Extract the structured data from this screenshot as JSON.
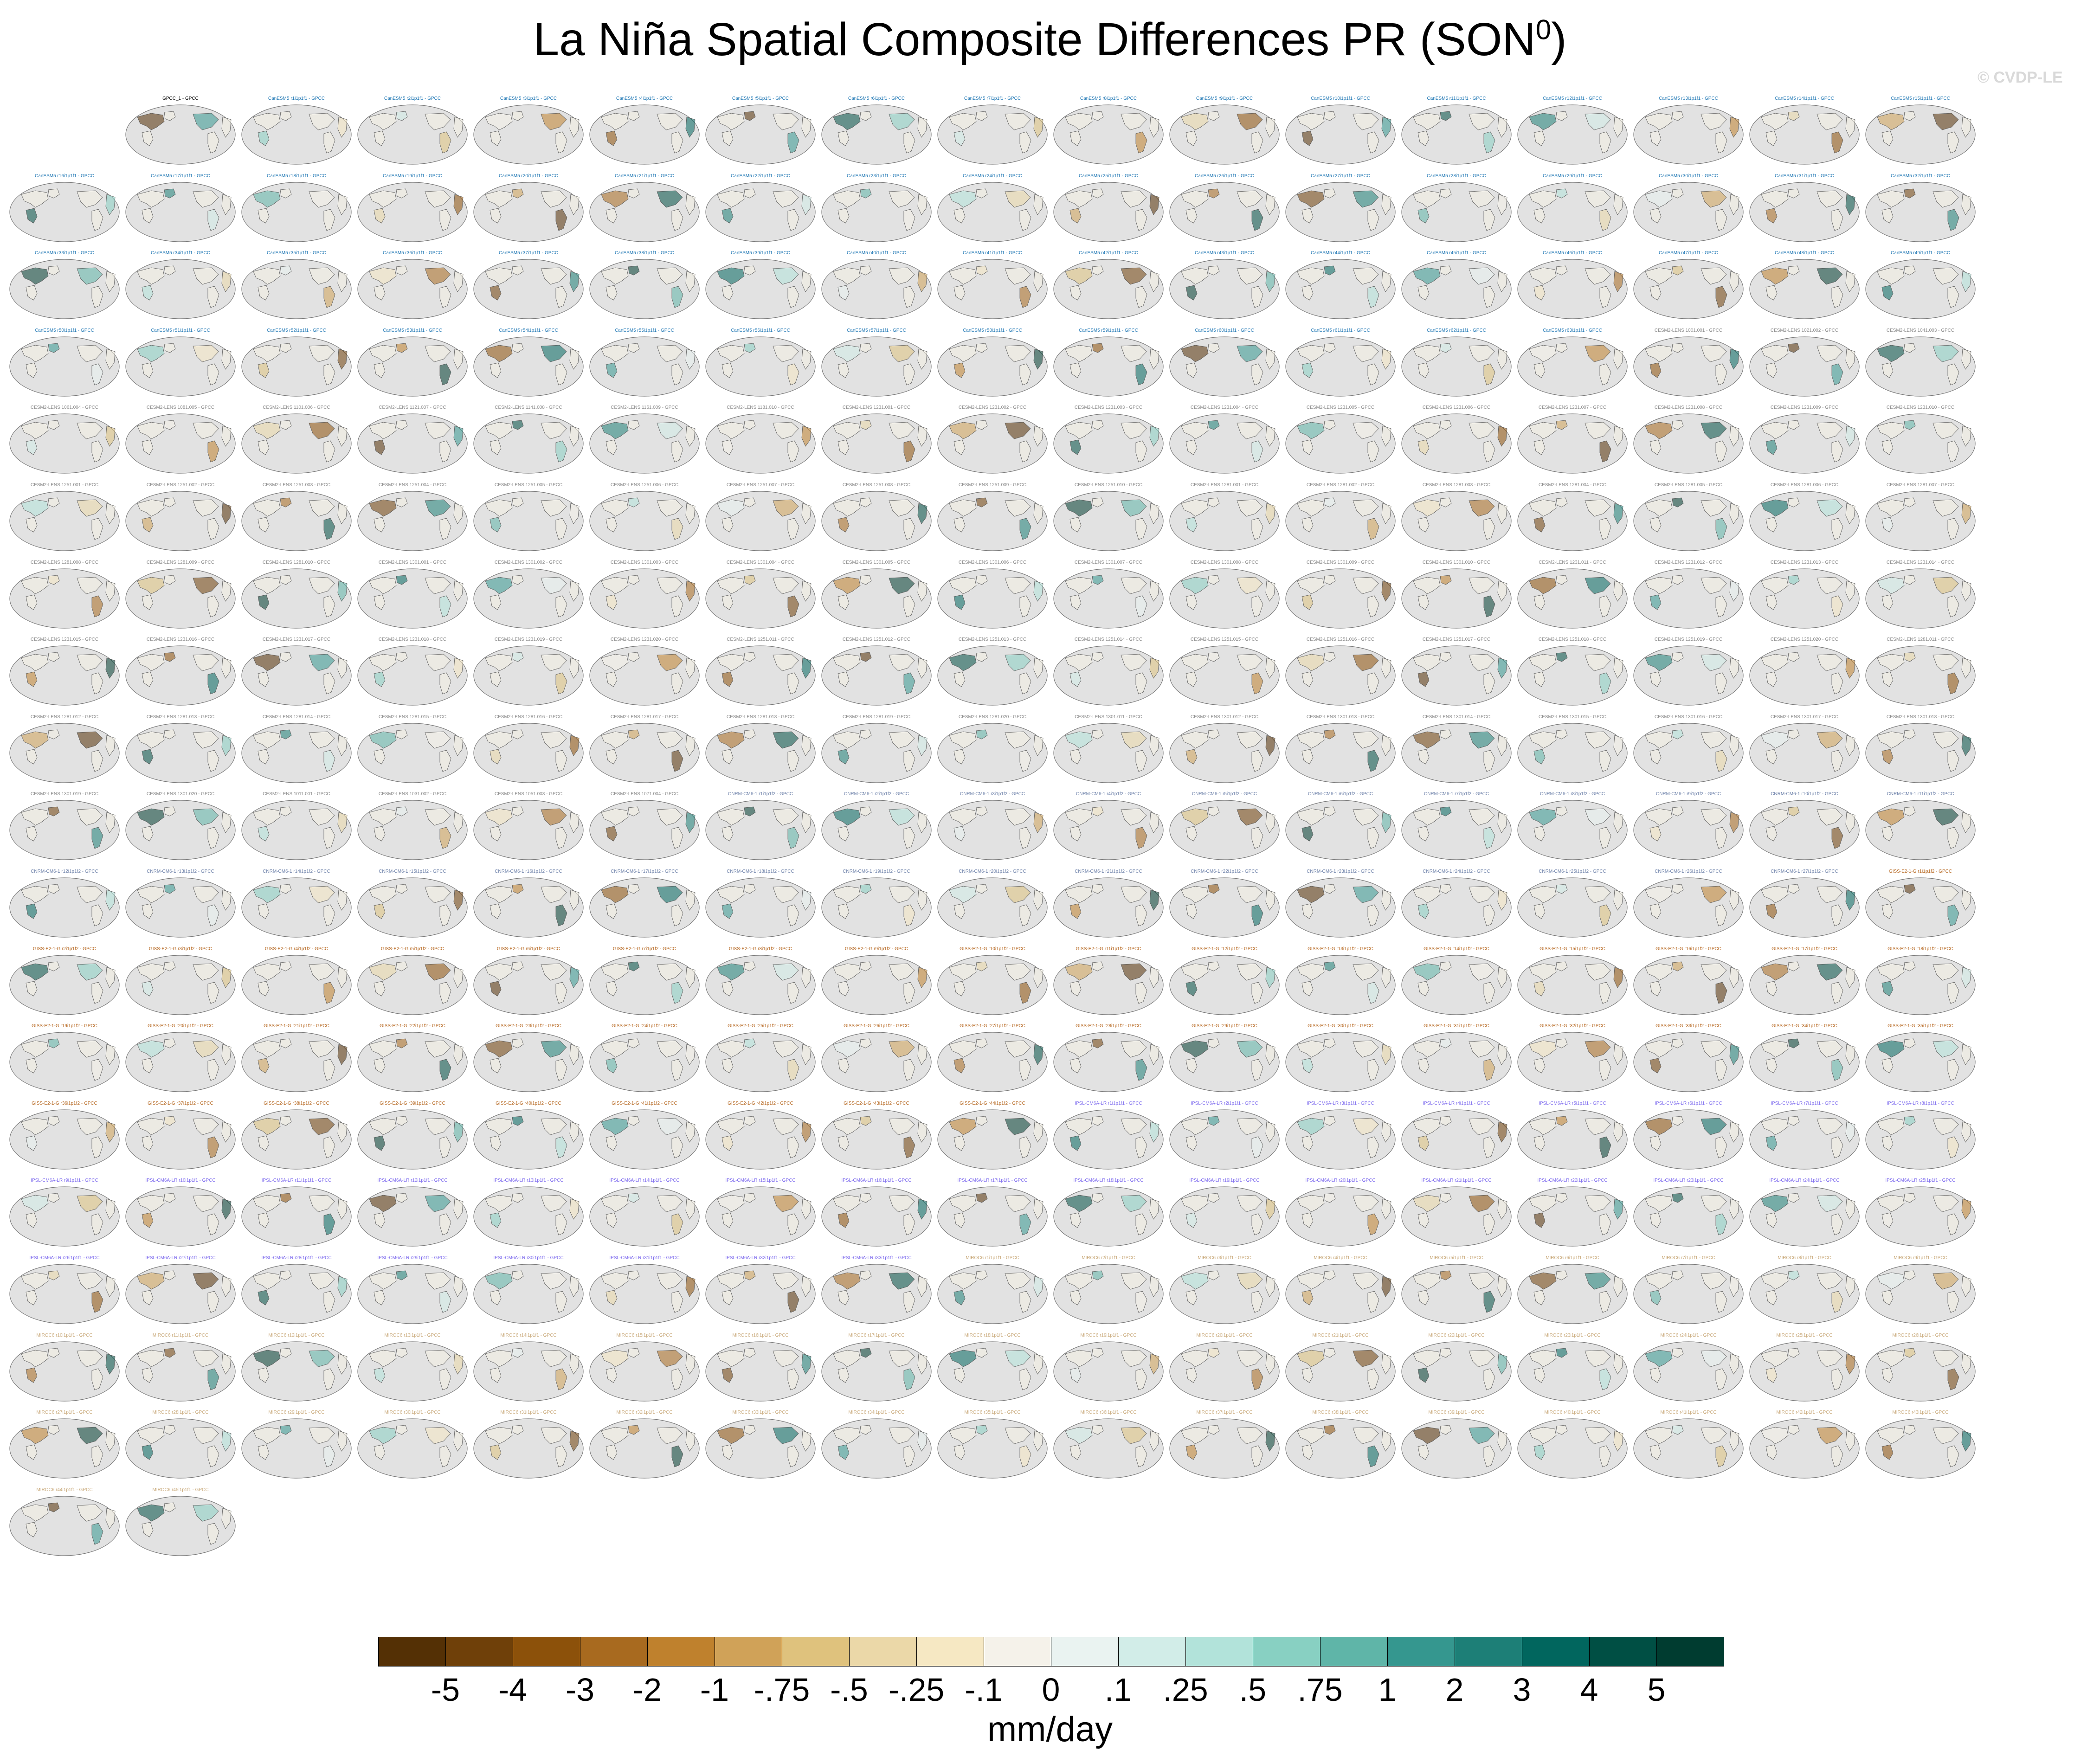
{
  "figure": {
    "title": "La Niña Spatial Composite Differences PR (SON",
    "title_superscript": "0",
    "title_close": ")",
    "watermark": "© CVDP-LE"
  },
  "panels": {
    "first_row_start_column": 1,
    "columns": 17,
    "titles": [
      "GPCC_1 - GPCC",
      "CanESM5 r1i1p1f1 - GPCC",
      "CanESM5 r2i1p1f1 - GPCC",
      "CanESM5 r3i1p1f1 - GPCC",
      "CanESM5 r4i1p1f1 - GPCC",
      "CanESM5 r5i1p1f1 - GPCC",
      "CanESM5 r6i1p1f1 - GPCC",
      "CanESM5 r7i1p1f1 - GPCC",
      "CanESM5 r8i1p1f1 - GPCC",
      "CanESM5 r9i1p1f1 - GPCC",
      "CanESM5 r10i1p1f1 - GPCC",
      "CanESM5 r11i1p1f1 - GPCC",
      "CanESM5 r12i1p1f1 - GPCC",
      "CanESM5 r13i1p1f1 - GPCC",
      "CanESM5 r14i1p1f1 - GPCC",
      "CanESM5 r15i1p1f1 - GPCC",
      "CanESM5 r16i1p1f1 - GPCC",
      "CanESM5 r17i1p1f1 - GPCC",
      "CanESM5 r18i1p1f1 - GPCC",
      "CanESM5 r19i1p1f1 - GPCC",
      "CanESM5 r20i1p1f1 - GPCC",
      "CanESM5 r21i1p1f1 - GPCC",
      "CanESM5 r22i1p1f1 - GPCC",
      "CanESM5 r23i1p1f1 - GPCC",
      "CanESM5 r24i1p1f1 - GPCC",
      "CanESM5 r25i1p1f1 - GPCC",
      "CanESM5 r26i1p1f1 - GPCC",
      "CanESM5 r27i1p1f1 - GPCC",
      "CanESM5 r28i1p1f1 - GPCC",
      "CanESM5 r29i1p1f1 - GPCC",
      "CanESM5 r30i1p1f1 - GPCC",
      "CanESM5 r31i1p1f1 - GPCC",
      "CanESM5 r32i1p1f1 - GPCC",
      "CanESM5 r33i1p1f1 - GPCC",
      "CanESM5 r34i1p1f1 - GPCC",
      "CanESM5 r35i1p1f1 - GPCC",
      "CanESM5 r36i1p1f1 - GPCC",
      "CanESM5 r37i1p1f1 - GPCC",
      "CanESM5 r38i1p1f1 - GPCC",
      "CanESM5 r39i1p1f1 - GPCC",
      "CanESM5 r40i1p1f1 - GPCC",
      "CanESM5 r41i1p1f1 - GPCC",
      "CanESM5 r42i1p1f1 - GPCC",
      "CanESM5 r43i1p1f1 - GPCC",
      "CanESM5 r44i1p1f1 - GPCC",
      "CanESM5 r45i1p1f1 - GPCC",
      "CanESM5 r46i1p1f1 - GPCC",
      "CanESM5 r47i1p1f1 - GPCC",
      "CanESM5 r48i1p1f1 - GPCC",
      "CanESM5 r49i1p1f1 - GPCC",
      "CanESM5 r50i1p1f1 - GPCC",
      "CanESM5 r51i1p1f1 - GPCC",
      "CanESM5 r52i1p1f1 - GPCC",
      "CanESM5 r53i1p1f1 - GPCC",
      "CanESM5 r54i1p1f1 - GPCC",
      "CanESM5 r55i1p1f1 - GPCC",
      "CanESM5 r56i1p1f1 - GPCC",
      "CanESM5 r57i1p1f1 - GPCC",
      "CanESM5 r58i1p1f1 - GPCC",
      "CanESM5 r59i1p1f1 - GPCC",
      "CanESM5 r60i1p1f1 - GPCC",
      "CanESM5 r61i1p1f1 - GPCC",
      "CanESM5 r62i1p1f1 - GPCC",
      "CanESM5 r63i1p1f1 - GPCC",
      "CESM2-LENS 1001.001 - GPCC",
      "CESM2-LENS 1021.002 - GPCC",
      "CESM2-LENS 1041.003 - GPCC",
      "CESM2-LENS 1061.004 - GPCC",
      "CESM2-LENS 1081.005 - GPCC",
      "CESM2-LENS 1101.006 - GPCC",
      "CESM2-LENS 1121.007 - GPCC",
      "CESM2-LENS 1141.008 - GPCC",
      "CESM2-LENS 1161.009 - GPCC",
      "CESM2-LENS 1181.010 - GPCC",
      "CESM2-LENS 1231.001 - GPCC",
      "CESM2-LENS 1231.002 - GPCC",
      "CESM2-LENS 1231.003 - GPCC",
      "CESM2-LENS 1231.004 - GPCC",
      "CESM2-LENS 1231.005 - GPCC",
      "CESM2-LENS 1231.006 - GPCC",
      "CESM2-LENS 1231.007 - GPCC",
      "CESM2-LENS 1231.008 - GPCC",
      "CESM2-LENS 1231.009 - GPCC",
      "CESM2-LENS 1231.010 - GPCC",
      "CESM2-LENS 1251.001 - GPCC",
      "CESM2-LENS 1251.002 - GPCC",
      "CESM2-LENS 1251.003 - GPCC",
      "CESM2-LENS 1251.004 - GPCC",
      "CESM2-LENS 1251.005 - GPCC",
      "CESM2-LENS 1251.006 - GPCC",
      "CESM2-LENS 1251.007 - GPCC",
      "CESM2-LENS 1251.008 - GPCC",
      "CESM2-LENS 1251.009 - GPCC",
      "CESM2-LENS 1251.010 - GPCC",
      "CESM2-LENS 1281.001 - GPCC",
      "CESM2-LENS 1281.002 - GPCC",
      "CESM2-LENS 1281.003 - GPCC",
      "CESM2-LENS 1281.004 - GPCC",
      "CESM2-LENS 1281.005 - GPCC",
      "CESM2-LENS 1281.006 - GPCC",
      "CESM2-LENS 1281.007 - GPCC",
      "CESM2-LENS 1281.008 - GPCC",
      "CESM2-LENS 1281.009 - GPCC",
      "CESM2-LENS 1281.010 - GPCC",
      "CESM2-LENS 1301.001 - GPCC",
      "CESM2-LENS 1301.002 - GPCC",
      "CESM2-LENS 1301.003 - GPCC",
      "CESM2-LENS 1301.004 - GPCC",
      "CESM2-LENS 1301.005 - GPCC",
      "CESM2-LENS 1301.006 - GPCC",
      "CESM2-LENS 1301.007 - GPCC",
      "CESM2-LENS 1301.008 - GPCC",
      "CESM2-LENS 1301.009 - GPCC",
      "CESM2-LENS 1301.010 - GPCC",
      "CESM2-LENS 1231.011 - GPCC",
      "CESM2-LENS 1231.012 - GPCC",
      "CESM2-LENS 1231.013 - GPCC",
      "CESM2-LENS 1231.014 - GPCC",
      "CESM2-LENS 1231.015 - GPCC",
      "CESM2-LENS 1231.016 - GPCC",
      "CESM2-LENS 1231.017 - GPCC",
      "CESM2-LENS 1231.018 - GPCC",
      "CESM2-LENS 1231.019 - GPCC",
      "CESM2-LENS 1231.020 - GPCC",
      "CESM2-LENS 1251.011 - GPCC",
      "CESM2-LENS 1251.012 - GPCC",
      "CESM2-LENS 1251.013 - GPCC",
      "CESM2-LENS 1251.014 - GPCC",
      "CESM2-LENS 1251.015 - GPCC",
      "CESM2-LENS 1251.016 - GPCC",
      "CESM2-LENS 1251.017 - GPCC",
      "CESM2-LENS 1251.018 - GPCC",
      "CESM2-LENS 1251.019 - GPCC",
      "CESM2-LENS 1251.020 - GPCC",
      "CESM2-LENS 1281.011 - GPCC",
      "CESM2-LENS 1281.012 - GPCC",
      "CESM2-LENS 1281.013 - GPCC",
      "CESM2-LENS 1281.014 - GPCC",
      "CESM2-LENS 1281.015 - GPCC",
      "CESM2-LENS 1281.016 - GPCC",
      "CESM2-LENS 1281.017 - GPCC",
      "CESM2-LENS 1281.018 - GPCC",
      "CESM2-LENS 1281.019 - GPCC",
      "CESM2-LENS 1281.020 - GPCC",
      "CESM2-LENS 1301.011 - GPCC",
      "CESM2-LENS 1301.012 - GPCC",
      "CESM2-LENS 1301.013 - GPCC",
      "CESM2-LENS 1301.014 - GPCC",
      "CESM2-LENS 1301.015 - GPCC",
      "CESM2-LENS 1301.016 - GPCC",
      "CESM2-LENS 1301.017 - GPCC",
      "CESM2-LENS 1301.018 - GPCC",
      "CESM2-LENS 1301.019 - GPCC",
      "CESM2-LENS 1301.020 - GPCC",
      "CESM2-LENS 1011.001 - GPCC",
      "CESM2-LENS 1031.002 - GPCC",
      "CESM2-LENS 1051.003 - GPCC",
      "CESM2-LENS 1071.004 - GPCC",
      "CNRM-CM6-1 r1i1p1f2 - GPCC",
      "CNRM-CM6-1 r2i1p1f2 - GPCC",
      "CNRM-CM6-1 r3i1p1f2 - GPCC",
      "CNRM-CM6-1 r4i1p1f2 - GPCC",
      "CNRM-CM6-1 r5i1p1f2 - GPCC",
      "CNRM-CM6-1 r6i1p1f2 - GPCC",
      "CNRM-CM6-1 r7i1p1f2 - GPCC",
      "CNRM-CM6-1 r8i1p1f2 - GPCC",
      "CNRM-CM6-1 r9i1p1f2 - GPCC",
      "CNRM-CM6-1 r10i1p1f2 - GPCC",
      "CNRM-CM6-1 r11i1p1f2 - GPCC",
      "CNRM-CM6-1 r12i1p1f2 - GPCC",
      "CNRM-CM6-1 r13i1p1f2 - GPCC",
      "CNRM-CM6-1 r14i1p1f2 - GPCC",
      "CNRM-CM6-1 r15i1p1f2 - GPCC",
      "CNRM-CM6-1 r16i1p1f2 - GPCC",
      "CNRM-CM6-1 r17i1p1f2 - GPCC",
      "CNRM-CM6-1 r18i1p1f2 - GPCC",
      "CNRM-CM6-1 r19i1p1f2 - GPCC",
      "CNRM-CM6-1 r20i1p1f2 - GPCC",
      "CNRM-CM6-1 r21i1p1f2 - GPCC",
      "CNRM-CM6-1 r22i1p1f2 - GPCC",
      "CNRM-CM6-1 r23i1p1f2 - GPCC",
      "CNRM-CM6-1 r24i1p1f2 - GPCC",
      "CNRM-CM6-1 r25i1p1f2 - GPCC",
      "CNRM-CM6-1 r26i1p1f2 - GPCC",
      "CNRM-CM6-1 r27i1p1f2 - GPCC",
      "GISS-E2-1-G r1i1p1f2 - GPCC",
      "GISS-E2-1-G r2i1p1f2 - GPCC",
      "GISS-E2-1-G r3i1p1f2 - GPCC",
      "GISS-E2-1-G r4i1p1f2 - GPCC",
      "GISS-E2-1-G r5i1p1f2 - GPCC",
      "GISS-E2-1-G r6i1p1f2 - GPCC",
      "GISS-E2-1-G r7i1p1f2 - GPCC",
      "GISS-E2-1-G r8i1p1f2 - GPCC",
      "GISS-E2-1-G r9i1p1f2 - GPCC",
      "GISS-E2-1-G r10i1p1f2 - GPCC",
      "GISS-E2-1-G r11i1p1f2 - GPCC",
      "GISS-E2-1-G r12i1p1f2 - GPCC",
      "GISS-E2-1-G r13i1p1f2 - GPCC",
      "GISS-E2-1-G r14i1p1f2 - GPCC",
      "GISS-E2-1-G r15i1p1f2 - GPCC",
      "GISS-E2-1-G r16i1p1f2 - GPCC",
      "GISS-E2-1-G r17i1p1f2 - GPCC",
      "GISS-E2-1-G r18i1p1f2 - GPCC",
      "GISS-E2-1-G r19i1p1f2 - GPCC",
      "GISS-E2-1-G r20i1p1f2 - GPCC",
      "GISS-E2-1-G r21i1p1f2 - GPCC",
      "GISS-E2-1-G r22i1p1f2 - GPCC",
      "GISS-E2-1-G r23i1p1f2 - GPCC",
      "GISS-E2-1-G r24i1p1f2 - GPCC",
      "GISS-E2-1-G r25i1p1f2 - GPCC",
      "GISS-E2-1-G r26i1p1f2 - GPCC",
      "GISS-E2-1-G r27i1p1f2 - GPCC",
      "GISS-E2-1-G r28i1p1f2 - GPCC",
      "GISS-E2-1-G r29i1p1f2 - GPCC",
      "GISS-E2-1-G r30i1p1f2 - GPCC",
      "GISS-E2-1-G r31i1p1f2 - GPCC",
      "GISS-E2-1-G r32i1p1f2 - GPCC",
      "GISS-E2-1-G r33i1p1f2 - GPCC",
      "GISS-E2-1-G r34i1p1f2 - GPCC",
      "GISS-E2-1-G r35i1p1f2 - GPCC",
      "GISS-E2-1-G r36i1p1f2 - GPCC",
      "GISS-E2-1-G r37i1p1f2 - GPCC",
      "GISS-E2-1-G r38i1p1f2 - GPCC",
      "GISS-E2-1-G r39i1p1f2 - GPCC",
      "GISS-E2-1-G r40i1p1f2 - GPCC",
      "GISS-E2-1-G r41i1p1f2 - GPCC",
      "GISS-E2-1-G r42i1p1f2 - GPCC",
      "GISS-E2-1-G r43i1p1f2 - GPCC",
      "GISS-E2-1-G r44i1p1f2 - GPCC",
      "IPSL-CM6A-LR r1i1p1f1 - GPCC",
      "IPSL-CM6A-LR r2i1p1f1 - GPCC",
      "IPSL-CM6A-LR r3i1p1f1 - GPCC",
      "IPSL-CM6A-LR r4i1p1f1 - GPCC",
      "IPSL-CM6A-LR r5i1p1f1 - GPCC",
      "IPSL-CM6A-LR r6i1p1f1 - GPCC",
      "IPSL-CM6A-LR r7i1p1f1 - GPCC",
      "IPSL-CM6A-LR r8i1p1f1 - GPCC",
      "IPSL-CM6A-LR r9i1p1f1 - GPCC",
      "IPSL-CM6A-LR r10i1p1f1 - GPCC",
      "IPSL-CM6A-LR r11i1p1f1 - GPCC",
      "IPSL-CM6A-LR r12i1p1f1 - GPCC",
      "IPSL-CM6A-LR r13i1p1f1 - GPCC",
      "IPSL-CM6A-LR r14i1p1f1 - GPCC",
      "IPSL-CM6A-LR r15i1p1f1 - GPCC",
      "IPSL-CM6A-LR r16i1p1f1 - GPCC",
      "IPSL-CM6A-LR r17i1p1f1 - GPCC",
      "IPSL-CM6A-LR r18i1p1f1 - GPCC",
      "IPSL-CM6A-LR r19i1p1f1 - GPCC",
      "IPSL-CM6A-LR r20i1p1f1 - GPCC",
      "IPSL-CM6A-LR r21i1p1f1 - GPCC",
      "IPSL-CM6A-LR r22i1p1f1 - GPCC",
      "IPSL-CM6A-LR r23i1p1f1 - GPCC",
      "IPSL-CM6A-LR r24i1p1f1 - GPCC",
      "IPSL-CM6A-LR r25i1p1f1 - GPCC",
      "IPSL-CM6A-LR r26i1p1f1 - GPCC",
      "IPSL-CM6A-LR r27i1p1f1 - GPCC",
      "IPSL-CM6A-LR r28i1p1f1 - GPCC",
      "IPSL-CM6A-LR r29i1p1f1 - GPCC",
      "IPSL-CM6A-LR r30i1p1f1 - GPCC",
      "IPSL-CM6A-LR r31i1p1f1 - GPCC",
      "IPSL-CM6A-LR r32i1p1f1 - GPCC",
      "IPSL-CM6A-LR r33i1p1f1 - GPCC",
      "MIROC6 r1i1p1f1 - GPCC",
      "MIROC6 r2i1p1f1 - GPCC",
      "MIROC6 r3i1p1f1 - GPCC",
      "MIROC6 r4i1p1f1 - GPCC",
      "MIROC6 r5i1p1f1 - GPCC",
      "MIROC6 r6i1p1f1 - GPCC",
      "MIROC6 r7i1p1f1 - GPCC",
      "MIROC6 r8i1p1f1 - GPCC",
      "MIROC6 r9i1p1f1 - GPCC",
      "MIROC6 r10i1p1f1 - GPCC",
      "MIROC6 r11i1p1f1 - GPCC",
      "MIROC6 r12i1p1f1 - GPCC",
      "MIROC6 r13i1p1f1 - GPCC",
      "MIROC6 r14i1p1f1 - GPCC",
      "MIROC6 r15i1p1f1 - GPCC",
      "MIROC6 r16i1p1f1 - GPCC",
      "MIROC6 r17i1p1f1 - GPCC",
      "MIROC6 r18i1p1f1 - GPCC",
      "MIROC6 r19i1p1f1 - GPCC",
      "MIROC6 r20i1p1f1 - GPCC",
      "MIROC6 r21i1p1f1 - GPCC",
      "MIROC6 r22i1p1f1 - GPCC",
      "MIROC6 r23i1p1f1 - GPCC",
      "MIROC6 r24i1p1f1 - GPCC",
      "MIROC6 r25i1p1f1 - GPCC",
      "MIROC6 r26i1p1f1 - GPCC",
      "MIROC6 r27i1p1f1 - GPCC",
      "MIROC6 r28i1p1f1 - GPCC",
      "MIROC6 r29i1p1f1 - GPCC",
      "MIROC6 r30i1p1f1 - GPCC",
      "MIROC6 r31i1p1f1 - GPCC",
      "MIROC6 r32i1p1f1 - GPCC",
      "MIROC6 r33i1p1f1 - GPCC",
      "MIROC6 r34i1p1f1 - GPCC",
      "MIROC6 r35i1p1f1 - GPCC",
      "MIROC6 r36i1p1f1 - GPCC",
      "MIROC6 r37i1p1f1 - GPCC",
      "MIROC6 r38i1p1f1 - GPCC",
      "MIROC6 r39i1p1f1 - GPCC",
      "MIROC6 r40i1p1f1 - GPCC",
      "MIROC6 r41i1p1f1 - GPCC",
      "MIROC6 r42i1p1f1 - GPCC",
      "MIROC6 r43i1p1f1 - GPCC",
      "MIROC6 r44i1p1f1 - GPCC",
      "MIROC6 r45i1p1f1 - GPCC"
    ],
    "title_colors": {
      "GPCC": "#000000",
      "CanESM5": "#1f77b4",
      "CESM2-LENS": "#8a8a8a",
      "CNRM-CM6-1": "#6b7fa8",
      "GISS-E2-1-G": "#b5651d",
      "IPSL-CM6A-LR": "#7b68ee",
      "MIROC6": "#c8a878"
    },
    "map_colors": {
      "ocean": "#e2e2e2",
      "coast": "#555555",
      "frame": "#777777"
    }
  },
  "colorbar": {
    "colors": [
      "#543005",
      "#6f4009",
      "#8c510a",
      "#a86a1f",
      "#bf812d",
      "#d0a258",
      "#dfc27d",
      "#ebd8a8",
      "#f6e8c3",
      "#f5f2ea",
      "#eaf3f1",
      "#d2ede8",
      "#b2e3da",
      "#88d0c2",
      "#5fb5a8",
      "#35978f",
      "#1d7f77",
      "#01665e",
      "#004f44",
      "#003c30"
    ],
    "ticks": [
      "-5",
      "-4",
      "-3",
      "-2",
      "-1",
      "-.75",
      "-.5",
      "-.25",
      "-.1",
      "0",
      ".1",
      ".25",
      ".5",
      ".75",
      "1",
      "2",
      "3",
      "4",
      "5"
    ],
    "units": "mm/day"
  }
}
